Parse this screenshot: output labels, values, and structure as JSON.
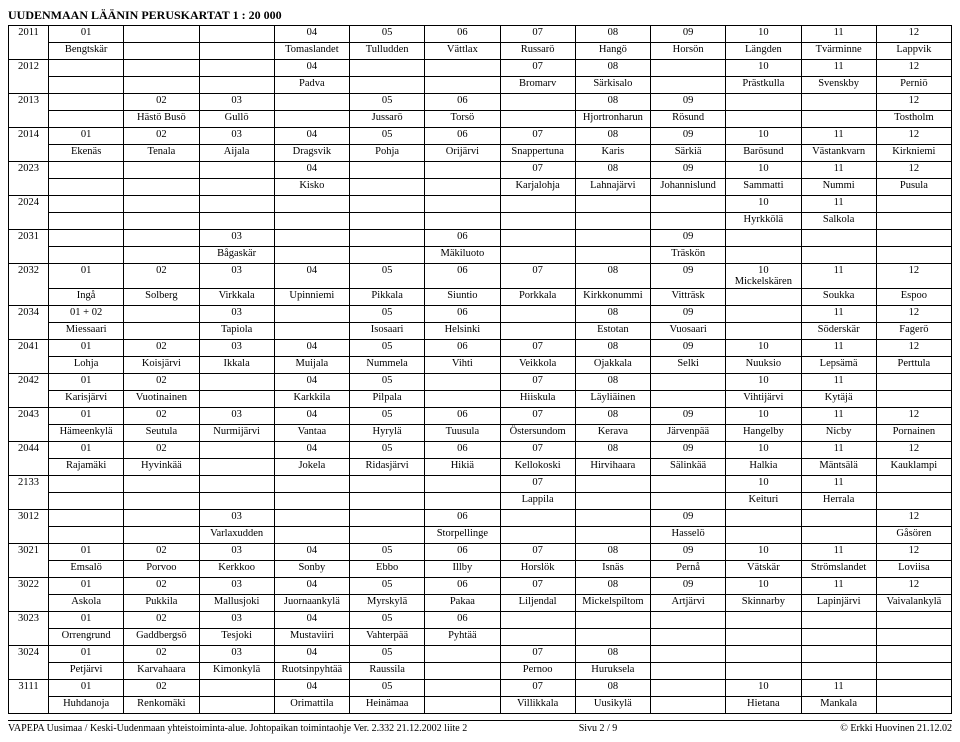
{
  "title": "UUDENMAAN LÄÄNIN PERUSKARTAT 1 : 20 000",
  "footer": {
    "left": "VAPEPA Uusimaa / Keski-Uudenmaan yhteistoiminta-alue. Johtopaikan toimintaohje Ver. 2.332    21.12.2002    liite 2",
    "center": "Sivu  2 / 9",
    "right": "© Erkki Huovinen 21.12.02"
  },
  "rows": [
    {
      "label": "2011",
      "nums": [
        "01",
        "",
        "",
        "04",
        "05",
        "06",
        "07",
        "08",
        "09",
        "10",
        "11",
        "12"
      ],
      "names": [
        "Bengtskär",
        "",
        "",
        "Tomaslandet",
        "Tulludden",
        "Vättlax",
        "Russarö",
        "Hangö",
        "Horsön",
        "Längden",
        "Tvärminne",
        "Lappvik"
      ]
    },
    {
      "label": "2012",
      "nums": [
        "",
        "",
        "",
        "04",
        "",
        "",
        "07",
        "08",
        "",
        "10",
        "11",
        "12"
      ],
      "names": [
        "",
        "",
        "",
        "Padva",
        "",
        "",
        "Bromarv",
        "Särkisalo",
        "",
        "Prästkulla",
        "Svenskby",
        "Perniö"
      ]
    },
    {
      "label": "2013",
      "nums": [
        "",
        "02",
        "03",
        "",
        "05",
        "06",
        "",
        "08",
        "09",
        "",
        "",
        "12"
      ],
      "names": [
        "",
        "Hästö Busö",
        "Gullö",
        "",
        "Jussarö",
        "Torsö",
        "",
        "Hjortronharun",
        "Rösund",
        "",
        "",
        "Tostholm"
      ]
    },
    {
      "label": "2014",
      "nums": [
        "01",
        "02",
        "03",
        "04",
        "05",
        "06",
        "07",
        "08",
        "09",
        "10",
        "11",
        "12"
      ],
      "names": [
        "Ekenäs",
        "Tenala",
        "Aijala",
        "Dragsvik",
        "Pohja",
        "Orijärvi",
        "Snappertuna",
        "Karis",
        "Särkiä",
        "Barösund",
        "Västankvarn",
        "Kirkniemi"
      ]
    },
    {
      "label": "2023",
      "nums": [
        "",
        "",
        "",
        "04",
        "",
        "",
        "07",
        "08",
        "09",
        "10",
        "11",
        "12"
      ],
      "names": [
        "",
        "",
        "",
        "Kisko",
        "",
        "",
        "Karjalohja",
        "Lahnajärvi",
        "Johannislund",
        "Sammatti",
        "Nummi",
        "Pusula"
      ]
    },
    {
      "label": "2024",
      "nums": [
        "",
        "",
        "",
        "",
        "",
        "",
        "",
        "",
        "",
        "10",
        "11",
        ""
      ],
      "names": [
        "",
        "",
        "",
        "",
        "",
        "",
        "",
        "",
        "",
        "Hyrkkölä",
        "Salkola",
        ""
      ]
    },
    {
      "label": "2031",
      "nums": [
        "",
        "",
        "03",
        "",
        "",
        "06",
        "",
        "",
        "09",
        "",
        "",
        ""
      ],
      "names": [
        "",
        "",
        "Bågaskär",
        "",
        "",
        "Mäkiluoto",
        "",
        "",
        "Träskön",
        "",
        "",
        ""
      ]
    },
    {
      "label": "2032",
      "nums": [
        "01",
        "02",
        "03",
        "04",
        "05",
        "06",
        "07",
        "08",
        "09",
        "10 Mickelskären",
        "11",
        "12"
      ],
      "names": [
        "Ingå",
        "Solberg",
        "Virkkala",
        "Upinniemi",
        "Pikkala",
        "Siuntio",
        "Porkkala",
        "Kirkkonummi",
        "Vitträsk",
        "",
        "Soukka",
        "Espoo"
      ]
    },
    {
      "label": "2034",
      "nums": [
        "01 + 02",
        "",
        "03",
        "",
        "05",
        "06",
        "",
        "08",
        "09",
        "",
        "11",
        "12"
      ],
      "names": [
        "Miessaari",
        "",
        "Tapiola",
        "",
        "Isosaari",
        "Helsinki",
        "",
        "Estotan",
        "Vuosaari",
        "",
        "Söderskär",
        "Fagerö"
      ]
    },
    {
      "label": "2041",
      "nums": [
        "01",
        "02",
        "03",
        "04",
        "05",
        "06",
        "07",
        "08",
        "09",
        "10",
        "11",
        "12"
      ],
      "names": [
        "Lohja",
        "Koisjärvi",
        "Ikkala",
        "Muijala",
        "Nummela",
        "Vihti",
        "Veikkola",
        "Ojakkala",
        "Selki",
        "Nuuksio",
        "Lepsämä",
        "Perttula"
      ]
    },
    {
      "label": "2042",
      "nums": [
        "01",
        "02",
        "",
        "04",
        "05",
        "",
        "07",
        "08",
        "",
        "10",
        "11",
        ""
      ],
      "names": [
        "Karisjärvi",
        "Vuotinainen",
        "",
        "Karkkila",
        "Pilpala",
        "",
        "Hiiskula",
        "Läyliäinen",
        "",
        "Vihtijärvi",
        "Kytäjä",
        ""
      ]
    },
    {
      "label": "2043",
      "nums": [
        "01",
        "02",
        "03",
        "04",
        "05",
        "06",
        "07",
        "08",
        "09",
        "10",
        "11",
        "12"
      ],
      "names": [
        "Hämeenkylä",
        "Seutula",
        "Nurmijärvi",
        "Vantaa",
        "Hyrylä",
        "Tuusula",
        "Östersundom",
        "Kerava",
        "Järvenpää",
        "Hangelby",
        "Nicby",
        "Pornainen"
      ]
    },
    {
      "label": "2044",
      "nums": [
        "01",
        "02",
        "",
        "04",
        "05",
        "06",
        "07",
        "08",
        "09",
        "10",
        "11",
        "12"
      ],
      "names": [
        "Rajamäki",
        "Hyvinkää",
        "",
        "Jokela",
        "Ridasjärvi",
        "Hikiä",
        "Kellokoski",
        "Hirvihaara",
        "Sälinkää",
        "Halkia",
        "Mäntsälä",
        "Kauklampi"
      ]
    },
    {
      "label": "2133",
      "nums": [
        "",
        "",
        "",
        "",
        "",
        "",
        "07",
        "",
        "",
        "10",
        "11",
        ""
      ],
      "names": [
        "",
        "",
        "",
        "",
        "",
        "",
        "Lappila",
        "",
        "",
        "Keituri",
        "Herrala",
        ""
      ]
    },
    {
      "label": "3012",
      "nums": [
        "",
        "",
        "03",
        "",
        "",
        "06",
        "",
        "",
        "09",
        "",
        "",
        "12"
      ],
      "names": [
        "",
        "",
        "Varlaxudden",
        "",
        "",
        "Storpellinge",
        "",
        "",
        "Hasselö",
        "",
        "",
        "Gåsören"
      ]
    },
    {
      "label": "3021",
      "nums": [
        "01",
        "02",
        "03",
        "04",
        "05",
        "06",
        "07",
        "08",
        "09",
        "10",
        "11",
        "12"
      ],
      "names": [
        "Emsalö",
        "Porvoo",
        "Kerkkoo",
        "Sonby",
        "Ebbo",
        "Illby",
        "Horslök",
        "Isnäs",
        "Pernå",
        "Vätskär",
        "Strömslandet",
        "Loviisa"
      ]
    },
    {
      "label": "3022",
      "nums": [
        "01",
        "02",
        "03",
        "04",
        "05",
        "06",
        "07",
        "08",
        "09",
        "10",
        "11",
        "12"
      ],
      "names": [
        "Askola",
        "Pukkila",
        "Mallusjoki",
        "Juornaankylä",
        "Myrskylä",
        "Pakaa",
        "Liljendal",
        "Mickelspiltom",
        "Artjärvi",
        "Skinnarby",
        "Lapinjärvi",
        "Vaivalankylä"
      ]
    },
    {
      "label": "3023",
      "nums": [
        "01",
        "02",
        "03",
        "04",
        "05",
        "06",
        "",
        "",
        "",
        "",
        "",
        ""
      ],
      "names": [
        "Orrengrund",
        "Gaddbergsö",
        "Tesjoki",
        "Mustaviiri",
        "Vahterpää",
        "Pyhtää",
        "",
        "",
        "",
        "",
        "",
        ""
      ]
    },
    {
      "label": "3024",
      "nums": [
        "01",
        "02",
        "03",
        "04",
        "05",
        "",
        "07",
        "08",
        "",
        "",
        "",
        ""
      ],
      "names": [
        "Petjärvi",
        "Karvahaara",
        "Kimonkylä",
        "Ruotsinpyhtää",
        "Raussila",
        "",
        "Pernoo",
        "Huruksela",
        "",
        "",
        "",
        ""
      ]
    },
    {
      "label": "3111",
      "nums": [
        "01",
        "02",
        "",
        "04",
        "05",
        "",
        "07",
        "08",
        "",
        "10",
        "11",
        ""
      ],
      "names": [
        "Huhdanoja",
        "Renkomäki",
        "",
        "Orimattila",
        "Heinämaa",
        "",
        "Villikkala",
        "Uusikylä",
        "",
        "Hietana",
        "Mankala",
        ""
      ]
    }
  ]
}
